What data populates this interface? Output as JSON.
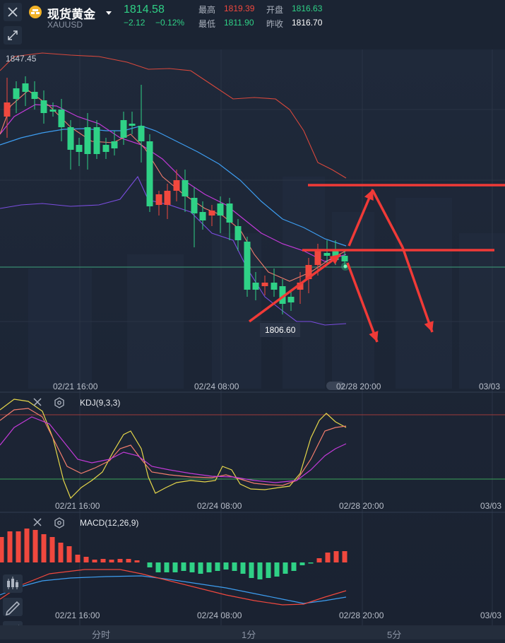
{
  "header": {
    "close_icon": "close-icon",
    "instrument_name": "现货黄金",
    "dropdown_icon": "caret-down-icon",
    "symbol": "XAUUSD",
    "last_price": "1814.58",
    "change": "−2.12",
    "change_pct": "−0.12%",
    "high_label": "最高",
    "high_value": "1819.39",
    "low_label": "最低",
    "low_value": "1811.90",
    "open_label": "开盘",
    "open_value": "1816.63",
    "prev_close_label": "昨收",
    "prev_close_value": "1816.70",
    "tool_icon": "expand-tool-icon"
  },
  "main_chart": {
    "max_label": "1847.45",
    "min_label": "1806.60",
    "time_ticks": [
      "02/21 16:00",
      "02/24 08:00",
      "02/28 20:00",
      "03/03"
    ],
    "colors": {
      "up": "#f0483e",
      "down": "#2fd186",
      "ma_blue": "#3d9df0",
      "ma_magenta": "#c23ad8",
      "ma_salmon": "#f27d6d",
      "boll_purple": "#7b4de0",
      "boll_red": "#d8483c"
    }
  },
  "kdj": {
    "label": "KDJ(9,3,3)",
    "time_ticks": [
      "02/21 16:00",
      "02/24 08:00",
      "02/28 20:00",
      "03/03"
    ]
  },
  "macd": {
    "label": "MACD(12,26,9)",
    "time_ticks": [
      "02/21 16:00",
      "02/24 08:00",
      "02/28 20:00",
      "03/03"
    ]
  },
  "tabs": [
    "分时",
    "1分",
    "5分"
  ],
  "side_tools": [
    "candle-style-icon",
    "draw-line-icon",
    "indicator-icon"
  ]
}
